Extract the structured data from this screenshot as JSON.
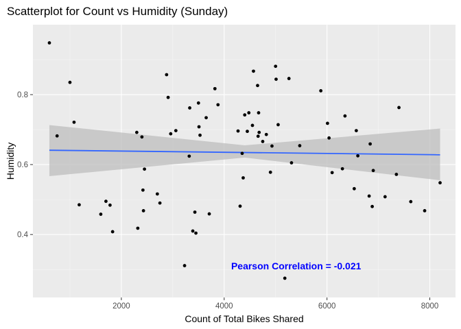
{
  "chart_data": {
    "type": "scatter",
    "title": "Scatterplot for Count vs Humidity (Sunday)",
    "xlabel": "Count of Total Bikes Shared",
    "ylabel": "Humidity",
    "xlim": [
      280,
      8500
    ],
    "ylim": [
      0.22,
      1.0
    ],
    "xticks": [
      2000,
      4000,
      6000,
      8000
    ],
    "xtick_labels": [
      "2000",
      "4000",
      "6000",
      "8000"
    ],
    "yticks": [
      0.4,
      0.6,
      0.8
    ],
    "ytick_labels": [
      "0.4",
      "0.6",
      "0.8"
    ],
    "grid": true,
    "background": "#ebebeb",
    "point_color": "#000000",
    "trend": {
      "method": "linear",
      "x": [
        600,
        8200
      ],
      "y": [
        0.641,
        0.628
      ],
      "ci_lower": [
        0.567,
        0.555
      ],
      "ci_mid": [
        0.62,
        0.655
      ],
      "ci_upper": [
        0.713,
        0.703
      ],
      "ci_x_mid": 4400,
      "line_color": "#3366ff",
      "band_color": "#bebebe"
    },
    "annotation": {
      "text": "Pearson Correlation = -0.021",
      "x": 5400,
      "y": 0.31,
      "color": "#0000ff"
    },
    "points": [
      [
        600,
        0.948
      ],
      [
        750,
        0.682
      ],
      [
        1000,
        0.835
      ],
      [
        1080,
        0.721
      ],
      [
        1180,
        0.485
      ],
      [
        1600,
        0.458
      ],
      [
        1700,
        0.495
      ],
      [
        1780,
        0.484
      ],
      [
        1830,
        0.408
      ],
      [
        2300,
        0.692
      ],
      [
        2320,
        0.418
      ],
      [
        2400,
        0.679
      ],
      [
        2420,
        0.527
      ],
      [
        2430,
        0.468
      ],
      [
        2450,
        0.587
      ],
      [
        2700,
        0.516
      ],
      [
        2750,
        0.49
      ],
      [
        2880,
        0.857
      ],
      [
        2910,
        0.792
      ],
      [
        2960,
        0.688
      ],
      [
        3060,
        0.697
      ],
      [
        3230,
        0.311
      ],
      [
        3320,
        0.624
      ],
      [
        3330,
        0.762
      ],
      [
        3390,
        0.41
      ],
      [
        3430,
        0.464
      ],
      [
        3450,
        0.404
      ],
      [
        3500,
        0.776
      ],
      [
        3510,
        0.708
      ],
      [
        3530,
        0.684
      ],
      [
        3650,
        0.734
      ],
      [
        3710,
        0.459
      ],
      [
        3820,
        0.817
      ],
      [
        3880,
        0.771
      ],
      [
        4270,
        0.696
      ],
      [
        4310,
        0.481
      ],
      [
        4350,
        0.632
      ],
      [
        4370,
        0.562
      ],
      [
        4400,
        0.742
      ],
      [
        4450,
        0.695
      ],
      [
        4480,
        0.748
      ],
      [
        4550,
        0.712
      ],
      [
        4570,
        0.867
      ],
      [
        4650,
        0.826
      ],
      [
        4660,
        0.681
      ],
      [
        4670,
        0.748
      ],
      [
        4680,
        0.692
      ],
      [
        4750,
        0.666
      ],
      [
        4820,
        0.686
      ],
      [
        4900,
        0.578
      ],
      [
        4930,
        0.653
      ],
      [
        5000,
        0.881
      ],
      [
        5010,
        0.844
      ],
      [
        5050,
        0.714
      ],
      [
        5180,
        0.275
      ],
      [
        5260,
        0.846
      ],
      [
        5310,
        0.605
      ],
      [
        5470,
        0.654
      ],
      [
        5880,
        0.811
      ],
      [
        6010,
        0.718
      ],
      [
        6040,
        0.676
      ],
      [
        6100,
        0.577
      ],
      [
        6300,
        0.588
      ],
      [
        6350,
        0.739
      ],
      [
        6530,
        0.531
      ],
      [
        6570,
        0.697
      ],
      [
        6600,
        0.625
      ],
      [
        6820,
        0.51
      ],
      [
        6840,
        0.659
      ],
      [
        6880,
        0.48
      ],
      [
        6900,
        0.583
      ],
      [
        7130,
        0.508
      ],
      [
        7350,
        0.572
      ],
      [
        7400,
        0.763
      ],
      [
        7630,
        0.494
      ],
      [
        7900,
        0.468
      ],
      [
        8200,
        0.548
      ]
    ]
  }
}
